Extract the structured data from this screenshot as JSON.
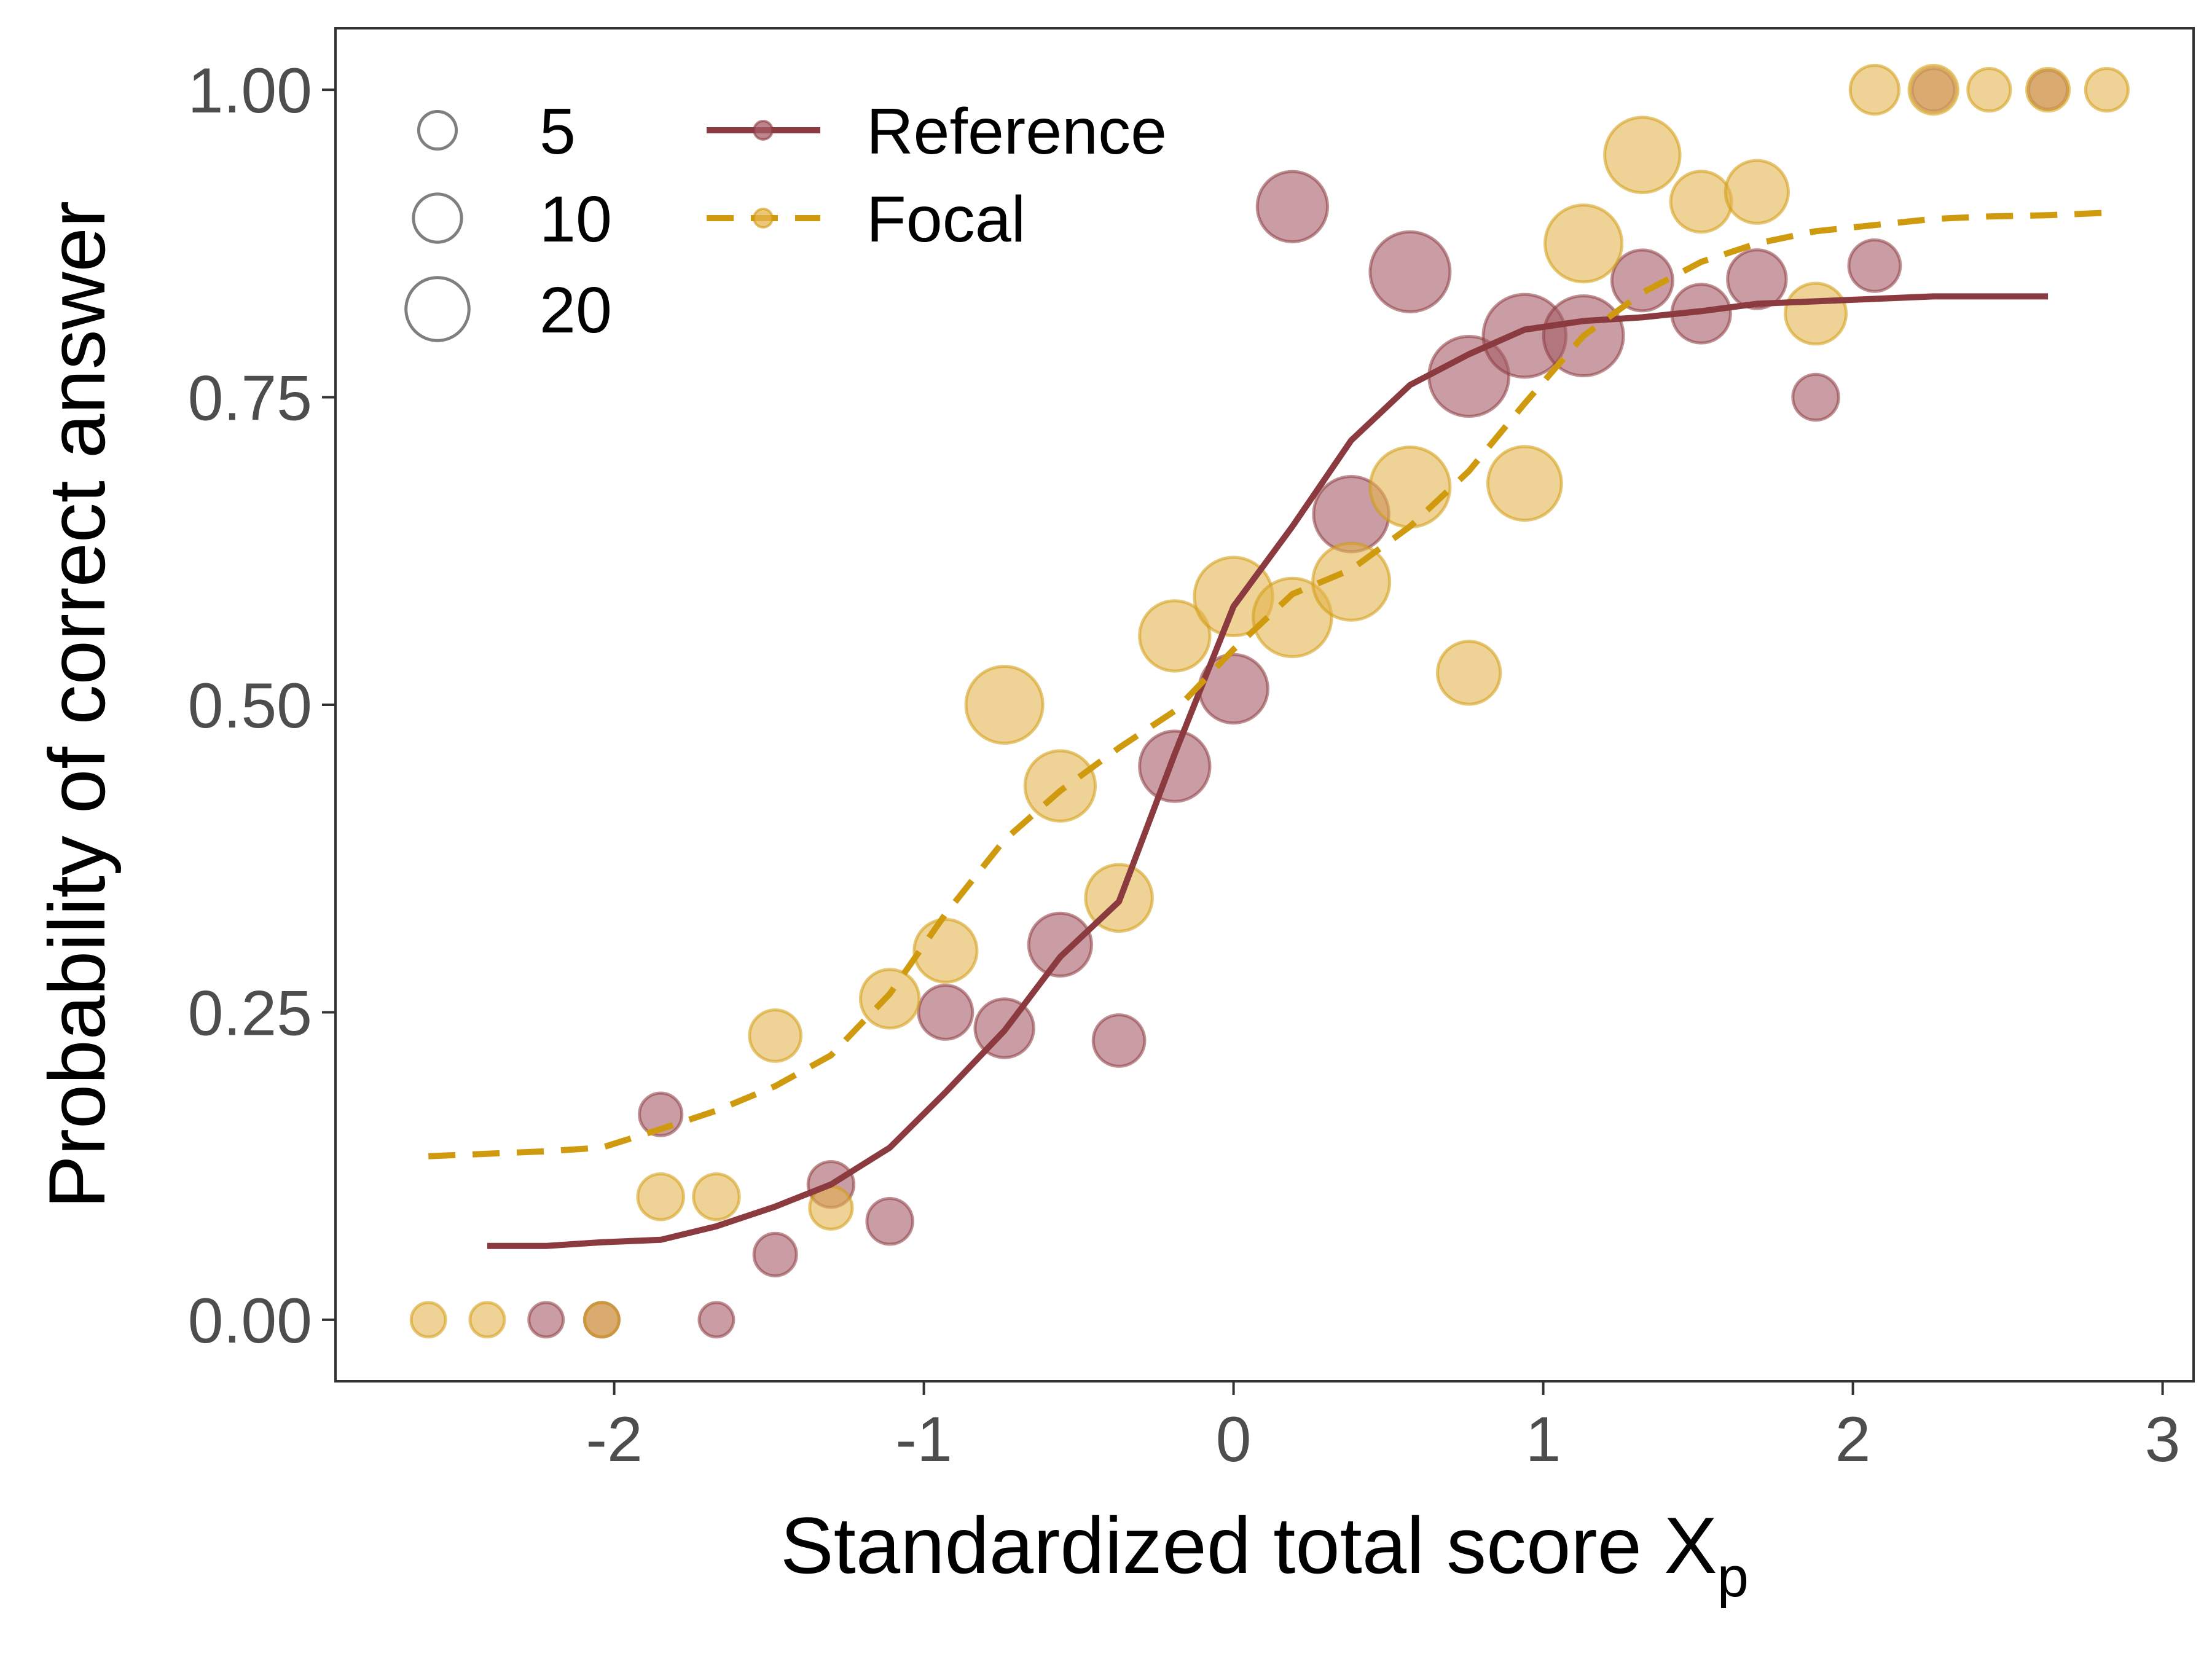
{
  "chart_data": {
    "type": "scatter",
    "xlabel": "Standardized total score X",
    "xlabel_subscript": "p",
    "ylabel": "Probability of correct answer",
    "xlim": [
      -2.9,
      3.1
    ],
    "ylim": [
      -0.05,
      1.05
    ],
    "x_ticks": [
      -2,
      -1,
      0,
      1,
      2,
      3
    ],
    "x_tick_labels": [
      "-2",
      "-1",
      "0",
      "1",
      "2",
      "3"
    ],
    "y_ticks": [
      0,
      0.25,
      0.5,
      0.75,
      1.0
    ],
    "y_tick_labels": [
      "0.00",
      "0.25",
      "0.50",
      "0.75",
      "1.00"
    ],
    "grid": false,
    "legend_placement": "top-left",
    "size_legend": {
      "entries": [
        {
          "label": "5",
          "value": 5
        },
        {
          "label": "10",
          "value": 10
        },
        {
          "label": "20",
          "value": 20
        }
      ]
    },
    "colors": {
      "reference": "#8b3a3f",
      "focal": "#d09a0e",
      "reference_points": "#a55b66",
      "focal_points": "#e4b44e"
    },
    "series": [
      {
        "name": "Reference",
        "line_style": "solid",
        "line": {
          "x": [
            -2.41,
            -2.22,
            -2.04,
            -1.85,
            -1.67,
            -1.48,
            -1.3,
            -1.11,
            -0.93,
            -0.74,
            -0.56,
            -0.37,
            -0.19,
            0.0,
            0.19,
            0.38,
            0.57,
            0.76,
            0.94,
            1.13,
            1.32,
            1.51,
            1.69,
            1.88,
            2.07,
            2.26,
            2.44,
            2.63
          ],
          "y": [
            0.06,
            0.06,
            0.063,
            0.065,
            0.076,
            0.092,
            0.11,
            0.14,
            0.185,
            0.235,
            0.295,
            0.34,
            0.46,
            0.58,
            0.645,
            0.715,
            0.76,
            0.785,
            0.805,
            0.812,
            0.815,
            0.82,
            0.826,
            0.828,
            0.83,
            0.832,
            0.832,
            0.832
          ]
        },
        "points": [
          {
            "x": -2.22,
            "y": 0.0,
            "n": 2
          },
          {
            "x": -2.04,
            "y": 0.0,
            "n": 2
          },
          {
            "x": -1.85,
            "y": 0.167,
            "n": 4
          },
          {
            "x": -1.67,
            "y": 0.0,
            "n": 2
          },
          {
            "x": -1.48,
            "y": 0.053,
            "n": 4
          },
          {
            "x": -1.3,
            "y": 0.11,
            "n": 5
          },
          {
            "x": -1.11,
            "y": 0.08,
            "n": 5
          },
          {
            "x": -0.93,
            "y": 0.25,
            "n": 8
          },
          {
            "x": -0.74,
            "y": 0.237,
            "n": 10
          },
          {
            "x": -0.56,
            "y": 0.305,
            "n": 12
          },
          {
            "x": -0.37,
            "y": 0.227,
            "n": 7
          },
          {
            "x": -0.19,
            "y": 0.45,
            "n": 16
          },
          {
            "x": 0.0,
            "y": 0.513,
            "n": 15
          },
          {
            "x": 0.19,
            "y": 0.905,
            "n": 16
          },
          {
            "x": 0.38,
            "y": 0.655,
            "n": 19
          },
          {
            "x": 0.57,
            "y": 0.852,
            "n": 22
          },
          {
            "x": 0.76,
            "y": 0.767,
            "n": 22
          },
          {
            "x": 0.94,
            "y": 0.8,
            "n": 24
          },
          {
            "x": 1.13,
            "y": 0.8,
            "n": 22
          },
          {
            "x": 1.32,
            "y": 0.845,
            "n": 11
          },
          {
            "x": 1.51,
            "y": 0.818,
            "n": 10
          },
          {
            "x": 1.69,
            "y": 0.846,
            "n": 10
          },
          {
            "x": 1.88,
            "y": 0.75,
            "n": 5
          },
          {
            "x": 2.07,
            "y": 0.857,
            "n": 7
          },
          {
            "x": 2.26,
            "y": 1.0,
            "n": 4
          },
          {
            "x": 2.63,
            "y": 1.0,
            "n": 3
          }
        ]
      },
      {
        "name": "Focal",
        "line_style": "dashed",
        "line": {
          "x": [
            -2.6,
            -2.41,
            -2.22,
            -2.04,
            -1.85,
            -1.67,
            -1.48,
            -1.3,
            -1.11,
            -0.93,
            -0.74,
            -0.56,
            -0.37,
            -0.19,
            0.0,
            0.19,
            0.38,
            0.57,
            0.76,
            0.94,
            1.13,
            1.32,
            1.51,
            1.69,
            1.88,
            2.07,
            2.26,
            2.44,
            2.63,
            2.82
          ],
          "y": [
            0.133,
            0.135,
            0.137,
            0.14,
            0.155,
            0.17,
            0.19,
            0.215,
            0.265,
            0.33,
            0.39,
            0.43,
            0.465,
            0.495,
            0.545,
            0.59,
            0.61,
            0.645,
            0.69,
            0.745,
            0.8,
            0.835,
            0.86,
            0.875,
            0.885,
            0.89,
            0.895,
            0.897,
            0.898,
            0.9
          ]
        },
        "points": [
          {
            "x": -2.6,
            "y": 0.0,
            "n": 2
          },
          {
            "x": -2.41,
            "y": 0.0,
            "n": 2
          },
          {
            "x": -2.04,
            "y": 0.0,
            "n": 2
          },
          {
            "x": -1.85,
            "y": 0.1,
            "n": 5
          },
          {
            "x": -1.67,
            "y": 0.1,
            "n": 5
          },
          {
            "x": -1.48,
            "y": 0.231,
            "n": 7
          },
          {
            "x": -1.3,
            "y": 0.091,
            "n": 4
          },
          {
            "x": -1.11,
            "y": 0.261,
            "n": 10
          },
          {
            "x": -0.93,
            "y": 0.3,
            "n": 12
          },
          {
            "x": -0.74,
            "y": 0.5,
            "n": 20
          },
          {
            "x": -0.56,
            "y": 0.434,
            "n": 16
          },
          {
            "x": -0.37,
            "y": 0.343,
            "n": 14
          },
          {
            "x": -0.19,
            "y": 0.556,
            "n": 16
          },
          {
            "x": 0.0,
            "y": 0.588,
            "n": 21
          },
          {
            "x": 0.19,
            "y": 0.571,
            "n": 21
          },
          {
            "x": 0.38,
            "y": 0.6,
            "n": 20
          },
          {
            "x": 0.57,
            "y": 0.677,
            "n": 22
          },
          {
            "x": 0.76,
            "y": 0.526,
            "n": 12
          },
          {
            "x": 0.94,
            "y": 0.68,
            "n": 18
          },
          {
            "x": 1.13,
            "y": 0.875,
            "n": 20
          },
          {
            "x": 1.32,
            "y": 0.947,
            "n": 19
          },
          {
            "x": 1.51,
            "y": 0.909,
            "n": 11
          },
          {
            "x": 1.69,
            "y": 0.917,
            "n": 12
          },
          {
            "x": 1.88,
            "y": 0.818,
            "n": 11
          },
          {
            "x": 2.07,
            "y": 1.0,
            "n": 6
          },
          {
            "x": 2.26,
            "y": 1.0,
            "n": 6
          },
          {
            "x": 2.44,
            "y": 1.0,
            "n": 4
          },
          {
            "x": 2.63,
            "y": 1.0,
            "n": 4
          },
          {
            "x": 2.82,
            "y": 1.0,
            "n": 4
          }
        ]
      }
    ]
  }
}
